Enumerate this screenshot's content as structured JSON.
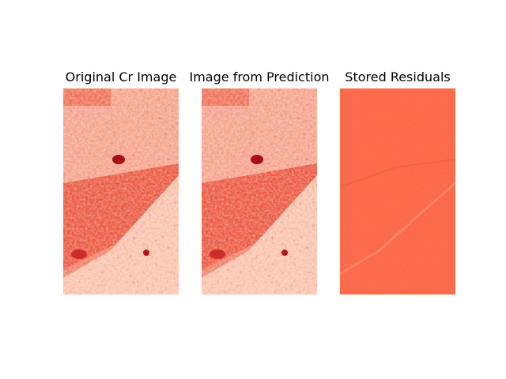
{
  "figure": {
    "panels": [
      {
        "title": "Original Cr Image",
        "content": "cr-channel-heatmap",
        "colormap": "Reds",
        "colors": {
          "light": "#fcd8c6",
          "mid": "#f26a4f",
          "dark": "#b81419"
        }
      },
      {
        "title": "Image from Prediction",
        "content": "predicted-cr-heatmap",
        "colormap": "Reds",
        "colors": {
          "light": "#fcd8c6",
          "mid": "#f26a4f",
          "dark": "#b81419"
        }
      },
      {
        "title": "Stored Residuals",
        "content": "residual-heatmap",
        "colormap": "Reds",
        "colors": {
          "base": "#fb6a4a",
          "light": "#fc9272",
          "dark": "#ef3b2c"
        }
      }
    ]
  }
}
